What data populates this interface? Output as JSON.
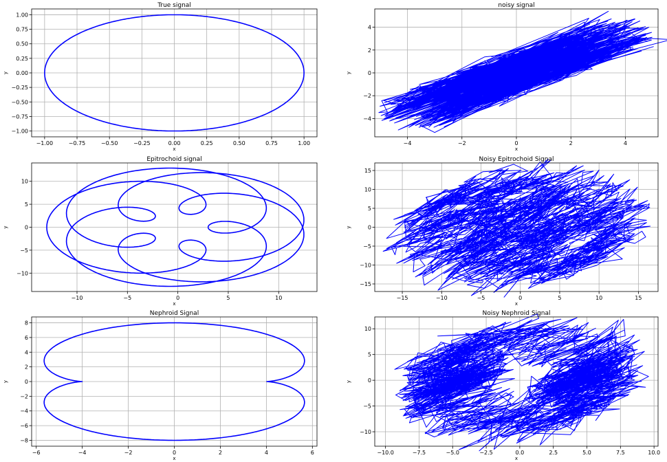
{
  "chart_data": [
    {
      "type": "line",
      "title": "True signal",
      "xlabel": "x",
      "ylabel": "y",
      "xlim": [
        -1.1,
        1.1
      ],
      "ylim": [
        -1.1,
        1.1
      ],
      "xticks": [
        -1.0,
        -0.75,
        -0.5,
        -0.25,
        0.0,
        0.25,
        0.5,
        0.75,
        1.0
      ],
      "yticks": [
        -1.0,
        -0.75,
        -0.5,
        -0.25,
        0.0,
        0.25,
        0.5,
        0.75,
        1.0
      ],
      "xtick_labels": [
        "−1.00",
        "−0.75",
        "−0.50",
        "−0.25",
        "0.00",
        "0.25",
        "0.50",
        "0.75",
        "1.00"
      ],
      "ytick_labels": [
        "−1.00",
        "−0.75",
        "−0.50",
        "−0.25",
        "0.00",
        "0.25",
        "0.50",
        "0.75",
        "1.00"
      ],
      "grid": true,
      "color": "#0000ff",
      "curve": "circle",
      "params": {
        "r": 1,
        "t_range": [
          0,
          6.2832
        ]
      }
    },
    {
      "type": "line",
      "title": "noisy signal",
      "xlabel": "x",
      "ylabel": "y",
      "xlim": [
        -5.2,
        5.2
      ],
      "ylim": [
        -5.6,
        5.6
      ],
      "xticks": [
        -4,
        -2,
        0,
        2,
        4
      ],
      "yticks": [
        -4,
        -2,
        0,
        2,
        4
      ],
      "xtick_labels": [
        "−4",
        "−2",
        "0",
        "2",
        "4"
      ],
      "ytick_labels": [
        "−4",
        "−2",
        "0",
        "2",
        "4"
      ],
      "grid": true,
      "color": "#0000ff",
      "curve": "noisy_circle",
      "params": {
        "r": 1,
        "noise_x": 4.0,
        "noise_y": 0.45,
        "n_points": 900,
        "seed": 7
      }
    },
    {
      "type": "line",
      "title": "Epitrochoid signal",
      "xlabel": "x",
      "ylabel": "y",
      "xlim": [
        -14.5,
        13.8
      ],
      "ylim": [
        -14.0,
        14.0
      ],
      "xticks": [
        -10,
        -5,
        0,
        5,
        10
      ],
      "yticks": [
        -10,
        -5,
        0,
        5,
        10
      ],
      "xtick_labels": [
        "−10",
        "−5",
        "0",
        "5",
        "10"
      ],
      "ytick_labels": [
        "−10",
        "−5",
        "0",
        "5",
        "10"
      ],
      "grid": true,
      "color": "#0000ff",
      "curve": "epitrochoid",
      "params": {
        "R": 5,
        "r": 3,
        "d": 5,
        "t_range": [
          0,
          18.85
        ]
      }
    },
    {
      "type": "line",
      "title": "Noisy Epitrochoid Signal",
      "xlabel": "x",
      "ylabel": "y",
      "xlim": [
        -18.5,
        17.5
      ],
      "ylim": [
        -17.0,
        17.0
      ],
      "xticks": [
        -15,
        -10,
        -5,
        0,
        5,
        10,
        15
      ],
      "yticks": [
        -15,
        -10,
        -5,
        0,
        5,
        10,
        15
      ],
      "xtick_labels": [
        "−15",
        "−10",
        "−5",
        "0",
        "5",
        "10",
        "15"
      ],
      "ytick_labels": [
        "−15",
        "−10",
        "−5",
        "0",
        "5",
        "10",
        "15"
      ],
      "grid": true,
      "color": "#0000ff",
      "curve": "noisy_epitrochoid",
      "params": {
        "R": 5,
        "r": 3,
        "d": 5,
        "noise_x": 4.2,
        "noise_y": 1.6,
        "n_points": 1600,
        "seed": 11
      }
    },
    {
      "type": "line",
      "title": "Nephroid Signal",
      "xlabel": "x",
      "ylabel": "y",
      "xlim": [
        -6.2,
        6.2
      ],
      "ylim": [
        -8.8,
        8.8
      ],
      "xticks": [
        -6,
        -4,
        -2,
        0,
        2,
        4,
        6
      ],
      "yticks": [
        -8,
        -6,
        -4,
        -2,
        0,
        2,
        4,
        6,
        8
      ],
      "xtick_labels": [
        "−6",
        "−4",
        "−2",
        "0",
        "2",
        "4",
        "6"
      ],
      "ytick_labels": [
        "−8",
        "−6",
        "−4",
        "−2",
        "0",
        "2",
        "4",
        "6",
        "8"
      ],
      "grid": true,
      "color": "#0000ff",
      "curve": "nephroid",
      "params": {
        "a": 2,
        "t_range": [
          0,
          6.2832
        ]
      }
    },
    {
      "type": "line",
      "title": "Noisy Nephroid Signal",
      "xlabel": "x",
      "ylabel": "y",
      "xlim": [
        -10.8,
        10.3
      ],
      "ylim": [
        -12.8,
        12.3
      ],
      "xticks": [
        -10.0,
        -7.5,
        -5.0,
        -2.5,
        0.0,
        2.5,
        5.0,
        7.5,
        10.0
      ],
      "yticks": [
        -10,
        -5,
        0,
        5,
        10
      ],
      "xtick_labels": [
        "−10.0",
        "−7.5",
        "−5.0",
        "−2.5",
        "0.0",
        "2.5",
        "5.0",
        "7.5",
        "10.0"
      ],
      "ytick_labels": [
        "−10",
        "−5",
        "0",
        "5",
        "10"
      ],
      "grid": true,
      "color": "#0000ff",
      "curve": "noisy_nephroid",
      "params": {
        "a": 2,
        "noise_x": 3.6,
        "noise_y": 1.5,
        "n_points": 1400,
        "seed": 23
      }
    }
  ]
}
